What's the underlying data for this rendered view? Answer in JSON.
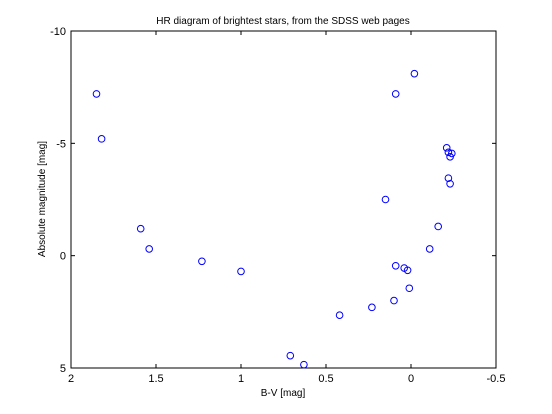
{
  "chart_data": {
    "type": "scatter",
    "title": "HR diagram of brightest stars, from the SDSS web pages",
    "xlabel": "B-V [mag]",
    "ylabel": "Absolute magnitude [mag]",
    "xlim": [
      2,
      -0.5
    ],
    "ylim": [
      -10,
      5
    ],
    "x_inverted": true,
    "y_inverted": true,
    "x_ticks": [
      2,
      1.5,
      1,
      0.5,
      0,
      -0.5
    ],
    "x_tick_labels": [
      "2",
      "1.5",
      "1",
      "0.5",
      "0",
      "-0.5"
    ],
    "y_ticks": [
      -10,
      -5,
      0,
      5
    ],
    "y_tick_labels": [
      "-10",
      "-5",
      "0",
      "5"
    ],
    "grid": false,
    "marker": "circle-open",
    "marker_color": "#0000ff",
    "series": [
      {
        "points": [
          {
            "x": 1.85,
            "y": -7.2
          },
          {
            "x": 1.82,
            "y": -5.2
          },
          {
            "x": 1.59,
            "y": -1.2
          },
          {
            "x": 1.54,
            "y": -0.3
          },
          {
            "x": 1.23,
            "y": 0.25
          },
          {
            "x": 1.0,
            "y": 0.7
          },
          {
            "x": 0.71,
            "y": 4.45
          },
          {
            "x": 0.63,
            "y": 4.85
          },
          {
            "x": 0.42,
            "y": 2.65
          },
          {
            "x": 0.23,
            "y": 2.3
          },
          {
            "x": 0.1,
            "y": 2.0
          },
          {
            "x": 0.15,
            "y": -2.5
          },
          {
            "x": 0.09,
            "y": 0.45
          },
          {
            "x": 0.04,
            "y": 0.55
          },
          {
            "x": 0.02,
            "y": 0.65
          },
          {
            "x": 0.01,
            "y": 1.45
          },
          {
            "x": 0.09,
            "y": -7.2
          },
          {
            "x": -0.02,
            "y": -8.1
          },
          {
            "x": -0.11,
            "y": -0.3
          },
          {
            "x": -0.16,
            "y": -1.3
          },
          {
            "x": -0.21,
            "y": -4.8
          },
          {
            "x": -0.22,
            "y": -4.6
          },
          {
            "x": -0.23,
            "y": -4.4
          },
          {
            "x": -0.24,
            "y": -4.55
          },
          {
            "x": -0.22,
            "y": -3.45
          },
          {
            "x": -0.23,
            "y": -3.2
          }
        ]
      }
    ]
  }
}
